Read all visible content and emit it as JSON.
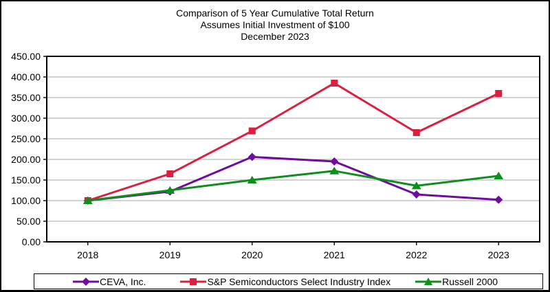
{
  "figure": {
    "title_lines": [
      "Comparison of 5 Year Cumulative Total Return",
      "Assumes Initial Investment of $100",
      "December 2023"
    ]
  },
  "chart_data": {
    "type": "line",
    "title": "Comparison of 5 Year Cumulative Total Return",
    "subtitle": "Assumes Initial Investment of $100",
    "date_label": "December 2023",
    "categories": [
      "2018",
      "2019",
      "2020",
      "2021",
      "2022",
      "2023"
    ],
    "series": [
      {
        "name": "CEVA, Inc.",
        "marker": "diamond",
        "color": "#6E0C9E",
        "values": [
          100.0,
          122.0,
          206.0,
          195.0,
          115.0,
          102.0
        ]
      },
      {
        "name": "S&P Semiconductors Select Industry Index",
        "marker": "square",
        "color": "#DC1F3F",
        "values": [
          100.0,
          165.0,
          269.0,
          385.0,
          265.0,
          360.0
        ]
      },
      {
        "name": "Russell 2000",
        "marker": "triangle",
        "color": "#0E8E1D",
        "values": [
          100.0,
          125.0,
          150.0,
          172.0,
          136.0,
          160.0
        ]
      }
    ],
    "ylim": [
      0,
      450
    ],
    "ytick_step": 50,
    "y_tick_labels": [
      "0.00",
      "50.00",
      "100.00",
      "150.00",
      "200.00",
      "250.00",
      "300.00",
      "350.00",
      "400.00",
      "450.00"
    ],
    "grid": true,
    "legend_position": "bottom",
    "gridline_color": "#A6A6A6",
    "axis_color": "#000000"
  }
}
